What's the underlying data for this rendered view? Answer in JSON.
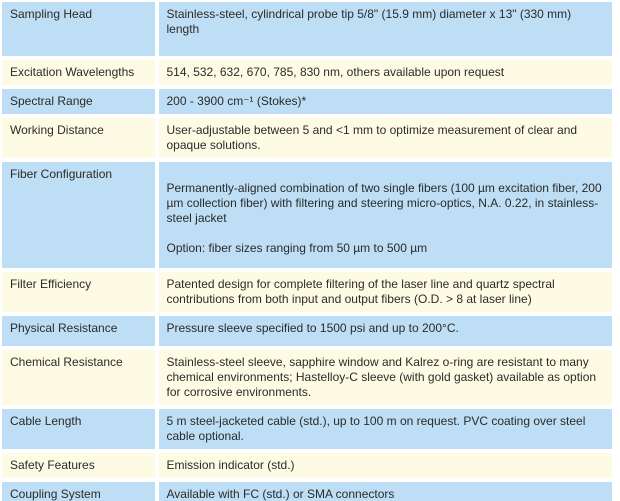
{
  "table": {
    "colors": {
      "row_blue": "#BDDEF4",
      "row_cream": "#FDFBE3",
      "separator": "#FFFFFF",
      "text": "#2B2B2B"
    },
    "rows": [
      {
        "label": "Sampling Head",
        "value": "Stainless-steel, cylindrical probe tip 5/8\" (15.9 mm) diameter x 13\" (330 mm) length"
      },
      {
        "label": "Excitation Wavelengths",
        "value": "514, 532, 632, 670, 785, 830 nm, others available upon request"
      },
      {
        "label": "Spectral Range",
        "value": "200 - 3900 cm⁻¹ (Stokes)*"
      },
      {
        "label": "Working Distance",
        "value": "User-adjustable between 5 and <1 mm to optimize measurement of clear and opaque solutions."
      },
      {
        "label": "Fiber Configuration",
        "value": "Permanently-aligned combination of two single fibers (100 µm excitation fiber, 200 µm collection fiber) with filtering and steering micro-optics, N.A. 0.22, in stainless-steel jacket",
        "value_option": "Option: fiber sizes ranging from 50 µm to 500 µm"
      },
      {
        "label": "Filter Efficiency",
        "value": "Patented design for complete filtering of the laser line and quartz spectral contributions from both input and output fibers (O.D. > 8 at laser line)"
      },
      {
        "label": "Physical Resistance",
        "value": "Pressure sleeve specified to 1500 psi and up to 200°C."
      },
      {
        "label": "Chemical Resistance",
        "value": "Stainless-steel sleeve, sapphire window and Kalrez o-ring are resistant to many chemical environments; Hastelloy-C sleeve (with gold gasket) available as option for corrosive environments."
      },
      {
        "label": "Cable Length",
        "value": "5 m steel-jacketed cable (std.), up to 100 m on request. PVC coating over steel cable optional."
      },
      {
        "label": "Safety Features",
        "value": "Emission indicator (std.)"
      },
      {
        "label": "Coupling System",
        "value": "Available with FC (std.) or SMA connectors"
      }
    ]
  }
}
